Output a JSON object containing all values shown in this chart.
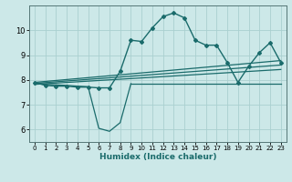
{
  "xlabel": "Humidex (Indice chaleur)",
  "bg_color": "#cce8e8",
  "line_color": "#1a6b6b",
  "grid_color": "#aad0d0",
  "xlim": [
    -0.5,
    23.5
  ],
  "ylim": [
    5.5,
    11.0
  ],
  "xticks": [
    0,
    1,
    2,
    3,
    4,
    5,
    6,
    7,
    8,
    9,
    10,
    11,
    12,
    13,
    14,
    15,
    16,
    17,
    18,
    19,
    20,
    21,
    22,
    23
  ],
  "yticks": [
    6,
    7,
    8,
    9,
    10
  ],
  "main_x": [
    0,
    1,
    2,
    3,
    4,
    5,
    6,
    7,
    8,
    9,
    10,
    11,
    12,
    13,
    14,
    15,
    16,
    17,
    18,
    19,
    20,
    21,
    22,
    23
  ],
  "main_y": [
    7.9,
    7.78,
    7.75,
    7.75,
    7.71,
    7.71,
    7.68,
    7.68,
    8.35,
    9.6,
    9.55,
    10.1,
    10.55,
    10.7,
    10.5,
    9.6,
    9.4,
    9.4,
    8.7,
    7.9,
    8.55,
    9.1,
    9.5,
    8.7
  ],
  "reg_lines": [
    {
      "x": [
        0,
        23
      ],
      "y": [
        7.9,
        8.78
      ]
    },
    {
      "x": [
        0,
        23
      ],
      "y": [
        7.86,
        8.6
      ]
    },
    {
      "x": [
        0,
        23
      ],
      "y": [
        7.82,
        8.42
      ]
    }
  ],
  "dip_x": [
    0,
    1,
    2,
    3,
    4,
    5,
    6,
    7,
    8,
    9,
    19,
    20,
    21,
    22,
    23
  ],
  "dip_y": [
    7.9,
    7.82,
    7.8,
    7.78,
    7.75,
    7.73,
    6.05,
    5.93,
    6.28,
    7.85,
    7.85,
    7.85,
    7.85,
    7.85,
    7.85
  ]
}
